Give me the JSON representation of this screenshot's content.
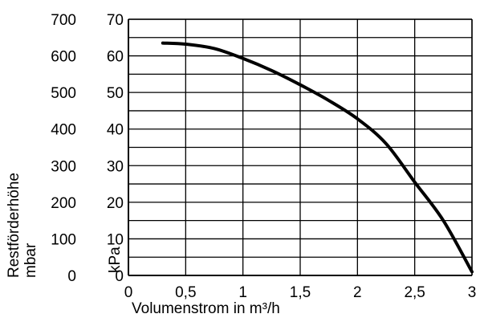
{
  "chart_data": {
    "type": "line",
    "xlabel": "Volumenstrom in m³/h",
    "ylabel_left_outer": [
      "Restförderhöhe",
      "mbar"
    ],
    "ylabel_left_inner": "kPa",
    "xlim": [
      0,
      3
    ],
    "ylim_kpa": [
      0,
      70
    ],
    "ylim_mbar": [
      0,
      700
    ],
    "x_ticks": [
      0,
      0.5,
      1,
      1.5,
      2,
      2.5,
      3
    ],
    "x_tick_labels": [
      "0",
      "0,5",
      "1",
      "1,5",
      "2",
      "2,5",
      "3"
    ],
    "y_ticks_kpa": [
      0,
      10,
      20,
      30,
      40,
      50,
      60,
      70
    ],
    "y_ticks_mbar": [
      0,
      100,
      200,
      300,
      400,
      500,
      600,
      700
    ],
    "grid": true,
    "series": [
      {
        "x": [
          0.3,
          0.5,
          0.75,
          1.0,
          1.25,
          1.5,
          1.75,
          2.0,
          2.25,
          2.5,
          2.75,
          3.0
        ],
        "y": [
          63.5,
          63.2,
          62.0,
          59.3,
          56.0,
          52.1,
          47.8,
          42.8,
          36.0,
          25.5,
          15.0,
          1.0
        ]
      }
    ]
  }
}
